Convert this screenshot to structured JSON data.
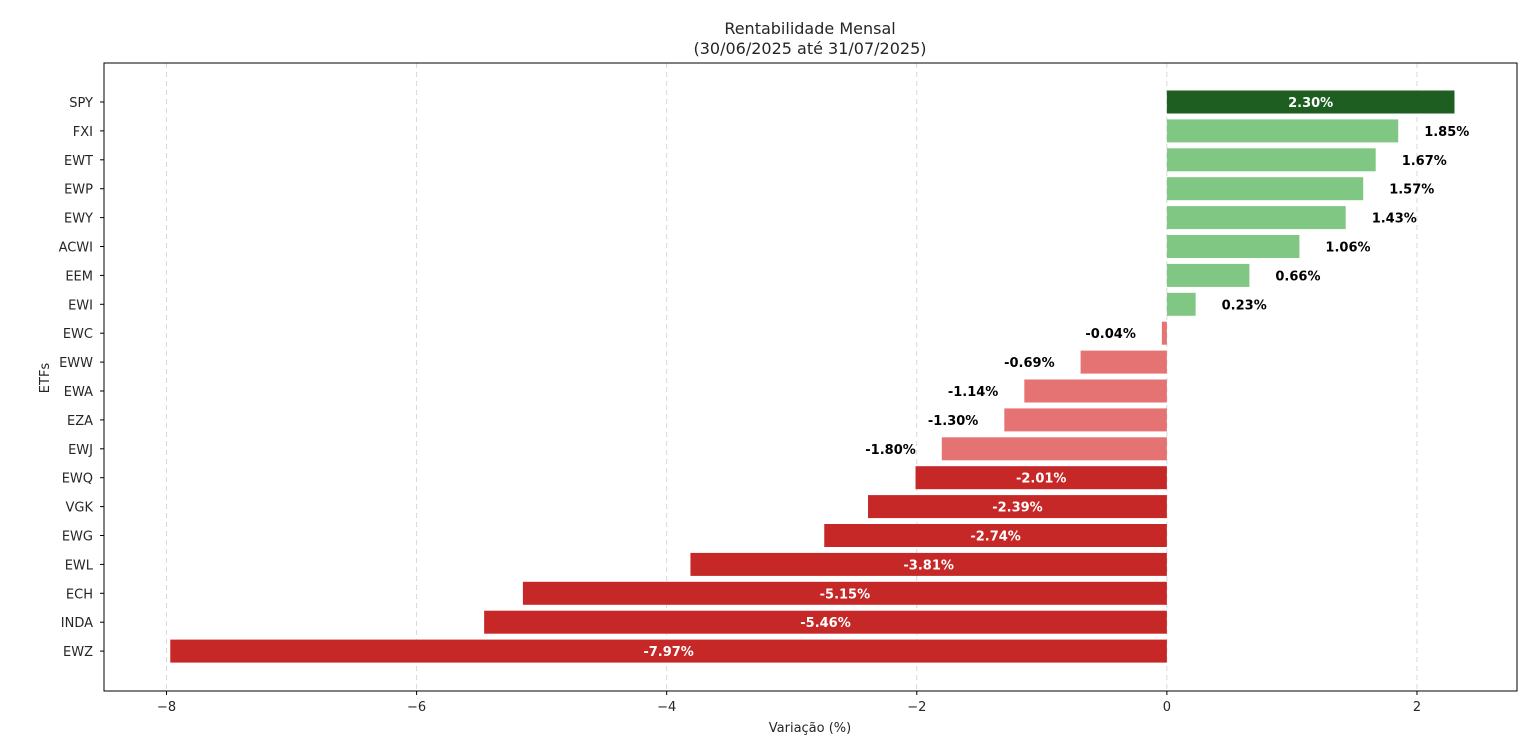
{
  "chart_data": {
    "type": "bar",
    "orientation": "horizontal",
    "title": "Rentabilidade Mensal",
    "subtitle": "(30/06/2025 até 31/07/2025)",
    "xlabel": "Variação (%)",
    "ylabel": "ETFs",
    "xlim": [
      -8.5,
      2.8
    ],
    "xticks": [
      -8,
      -6,
      -4,
      -2,
      0,
      2
    ],
    "xtick_labels": [
      "−8",
      "−6",
      "−4",
      "−2",
      "0",
      "2"
    ],
    "grid": "vertical dashed",
    "categories": [
      "SPY",
      "FXI",
      "EWT",
      "EWP",
      "EWY",
      "ACWI",
      "EEM",
      "EWI",
      "EWC",
      "EWW",
      "EWA",
      "EZA",
      "EWJ",
      "EWQ",
      "VGK",
      "EWG",
      "EWL",
      "ECH",
      "INDA",
      "EWZ"
    ],
    "values": [
      2.3,
      1.85,
      1.67,
      1.57,
      1.43,
      1.06,
      0.66,
      0.23,
      -0.04,
      -0.69,
      -1.14,
      -1.3,
      -1.8,
      -2.01,
      -2.39,
      -2.74,
      -3.81,
      -5.15,
      -5.46,
      -7.97
    ],
    "value_labels": [
      "2.30%",
      "1.85%",
      "1.67%",
      "1.57%",
      "1.43%",
      "1.06%",
      "0.66%",
      "0.23%",
      "-0.04%",
      "-0.69%",
      "-1.14%",
      "-1.30%",
      "-1.80%",
      "-2.01%",
      "-2.39%",
      "-2.74%",
      "-3.81%",
      "-5.15%",
      "-5.46%",
      "-7.97%"
    ],
    "colors": {
      "top_positive": "#1e5e20",
      "positive": "#81c784",
      "negative_small": "#e57373",
      "negative_large": "#c62828",
      "label_inside": "#ffffff",
      "label_outside": "#000000"
    },
    "bar_colors": [
      "#1e5e20",
      "#81c784",
      "#81c784",
      "#81c784",
      "#81c784",
      "#81c784",
      "#81c784",
      "#81c784",
      "#e57373",
      "#e57373",
      "#e57373",
      "#e57373",
      "#e57373",
      "#c62828",
      "#c62828",
      "#c62828",
      "#c62828",
      "#c62828",
      "#c62828",
      "#c62828"
    ],
    "label_inside": [
      true,
      false,
      false,
      false,
      false,
      false,
      false,
      false,
      false,
      false,
      false,
      false,
      false,
      true,
      true,
      true,
      true,
      true,
      true,
      true
    ]
  }
}
